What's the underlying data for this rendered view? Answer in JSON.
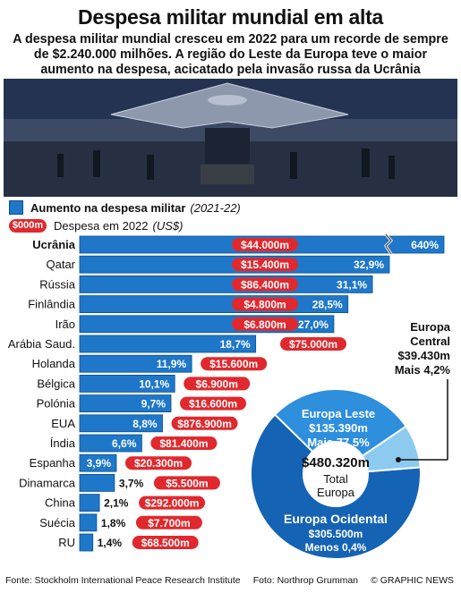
{
  "title": "Despesa militar mundial em alta",
  "subtitle": "A despesa militar mundial cresceu em 2022 para um recorde de sempre de $2.240.000 milhões. A região do Leste da Europa teve o maior aumento na despesa, acicatado pela invasão russa da Ucrânia",
  "legend": {
    "increase_label": "Aumento na despesa militar",
    "increase_period": "(2021-22)",
    "spend_pill": "$000m",
    "spend_label": "Despesa em 2022",
    "spend_unit": "(US$)"
  },
  "colors": {
    "bar": "#1f77c9",
    "bar_dark": "#0a4f8f",
    "pill": "#e0292e",
    "donut_dark": "#1563b4",
    "donut_mid": "#2e8fdc",
    "donut_light": "#8ccaf0"
  },
  "chart_data": [
    {
      "type": "bar",
      "orientation": "horizontal",
      "categories": [
        "Ucrânia",
        "Qatar",
        "Rússia",
        "Finlândia",
        "Irão",
        "Arábia Saud.",
        "Holanda",
        "Bélgica",
        "Polónia",
        "EUA",
        "Índia",
        "Espanha",
        "Dinamarca",
        "China",
        "Suécia",
        "RU"
      ],
      "increase_labels": [
        "640%",
        "32,9%",
        "31,1%",
        "28,5%",
        "27,0%",
        "18,7%",
        "11,9%",
        "10,1%",
        "9,7%",
        "8,8%",
        "6,6%",
        "3,9%",
        "3,7%",
        "2,1%",
        "1,8%",
        "1,4%"
      ],
      "increase_pct": [
        640,
        32.9,
        31.1,
        28.5,
        27.0,
        18.7,
        11.9,
        10.1,
        9.7,
        8.8,
        6.6,
        3.9,
        3.7,
        2.1,
        1.8,
        1.4
      ],
      "spending_labels": [
        "$44.000m",
        "$15.400m",
        "$86.400m",
        "$4.800m",
        "$6.800m",
        "$75.000m",
        "$15.600m",
        "$6.900m",
        "$16.600m",
        "$876.900m",
        "$81.400m",
        "$20.300m",
        "$5.500m",
        "$292.000m",
        "$7.700m",
        "$68.500m"
      ],
      "axis_break_after": 32.9
    },
    {
      "type": "pie",
      "title": "Total Europa",
      "total": "$480.320m",
      "slices": [
        {
          "name": "Europa Ocidental",
          "value_label": "$305.500m",
          "change": "Menos 0,4%",
          "value": 305500
        },
        {
          "name": "Europa Leste",
          "value_label": "$135.390m",
          "change": "Mais 77,5%",
          "value": 135390
        },
        {
          "name": "Europa Central",
          "value_label": "$39.430m",
          "change": "Mais 4,2%",
          "value": 39430
        }
      ]
    }
  ],
  "footer": {
    "source": "Fonte: Stockholm International Peace Research Institute",
    "photo": "Foto: Northrop Grumman",
    "credit": "© GRAPHIC NEWS"
  }
}
